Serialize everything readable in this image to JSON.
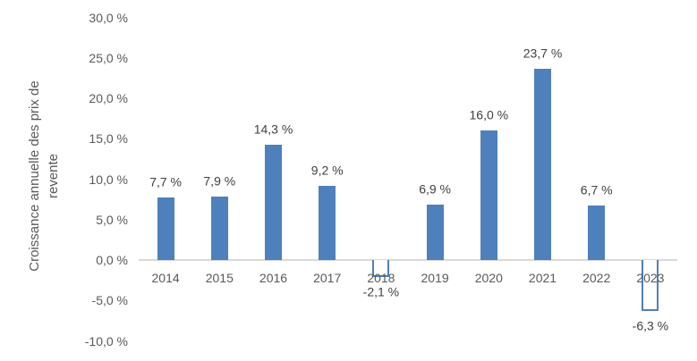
{
  "chart_data": {
    "type": "bar",
    "title": "",
    "ylabel": "Croissance annuelle des prix de revente",
    "ylabel_lines": [
      "Croissance annuelle des prix de",
      "revente"
    ],
    "categories": [
      "2014",
      "2015",
      "2016",
      "2017",
      "2018",
      "2019",
      "2020",
      "2021",
      "2022",
      "2023"
    ],
    "values": [
      7.7,
      7.9,
      14.3,
      9.2,
      -2.1,
      6.9,
      16.0,
      23.7,
      6.7,
      -6.3
    ],
    "value_labels": [
      "7,7 %",
      "7,9 %",
      "14,3 %",
      "9,2 %",
      "-2,1 %",
      "6,9 %",
      "16,0 %",
      "23,7 %",
      "6,7 %",
      "-6,3 %"
    ],
    "y_ticks": [
      {
        "value": 30,
        "label": "30,0 %"
      },
      {
        "value": 25,
        "label": "25,0 %"
      },
      {
        "value": 20,
        "label": "20,0 %"
      },
      {
        "value": 15,
        "label": "15,0 %"
      },
      {
        "value": 10,
        "label": "10,0 %"
      },
      {
        "value": 5,
        "label": "5,0 %"
      },
      {
        "value": 0,
        "label": "0,0 %"
      },
      {
        "value": -5,
        "label": "-5,0 %"
      },
      {
        "value": -10,
        "label": "-10,0 %"
      }
    ],
    "ylim": [
      -10,
      30
    ],
    "grid": false,
    "legend": null,
    "colors": {
      "bar_fill": "#4E80BC",
      "negative_bar_fill": "#FFFFFF",
      "negative_bar_border": "#4E80BC",
      "axis_line": "#D9D9D9",
      "tick_label": "#595959",
      "category_label": "#595959",
      "data_label": "#404040",
      "background": "#FFFFFF"
    }
  }
}
